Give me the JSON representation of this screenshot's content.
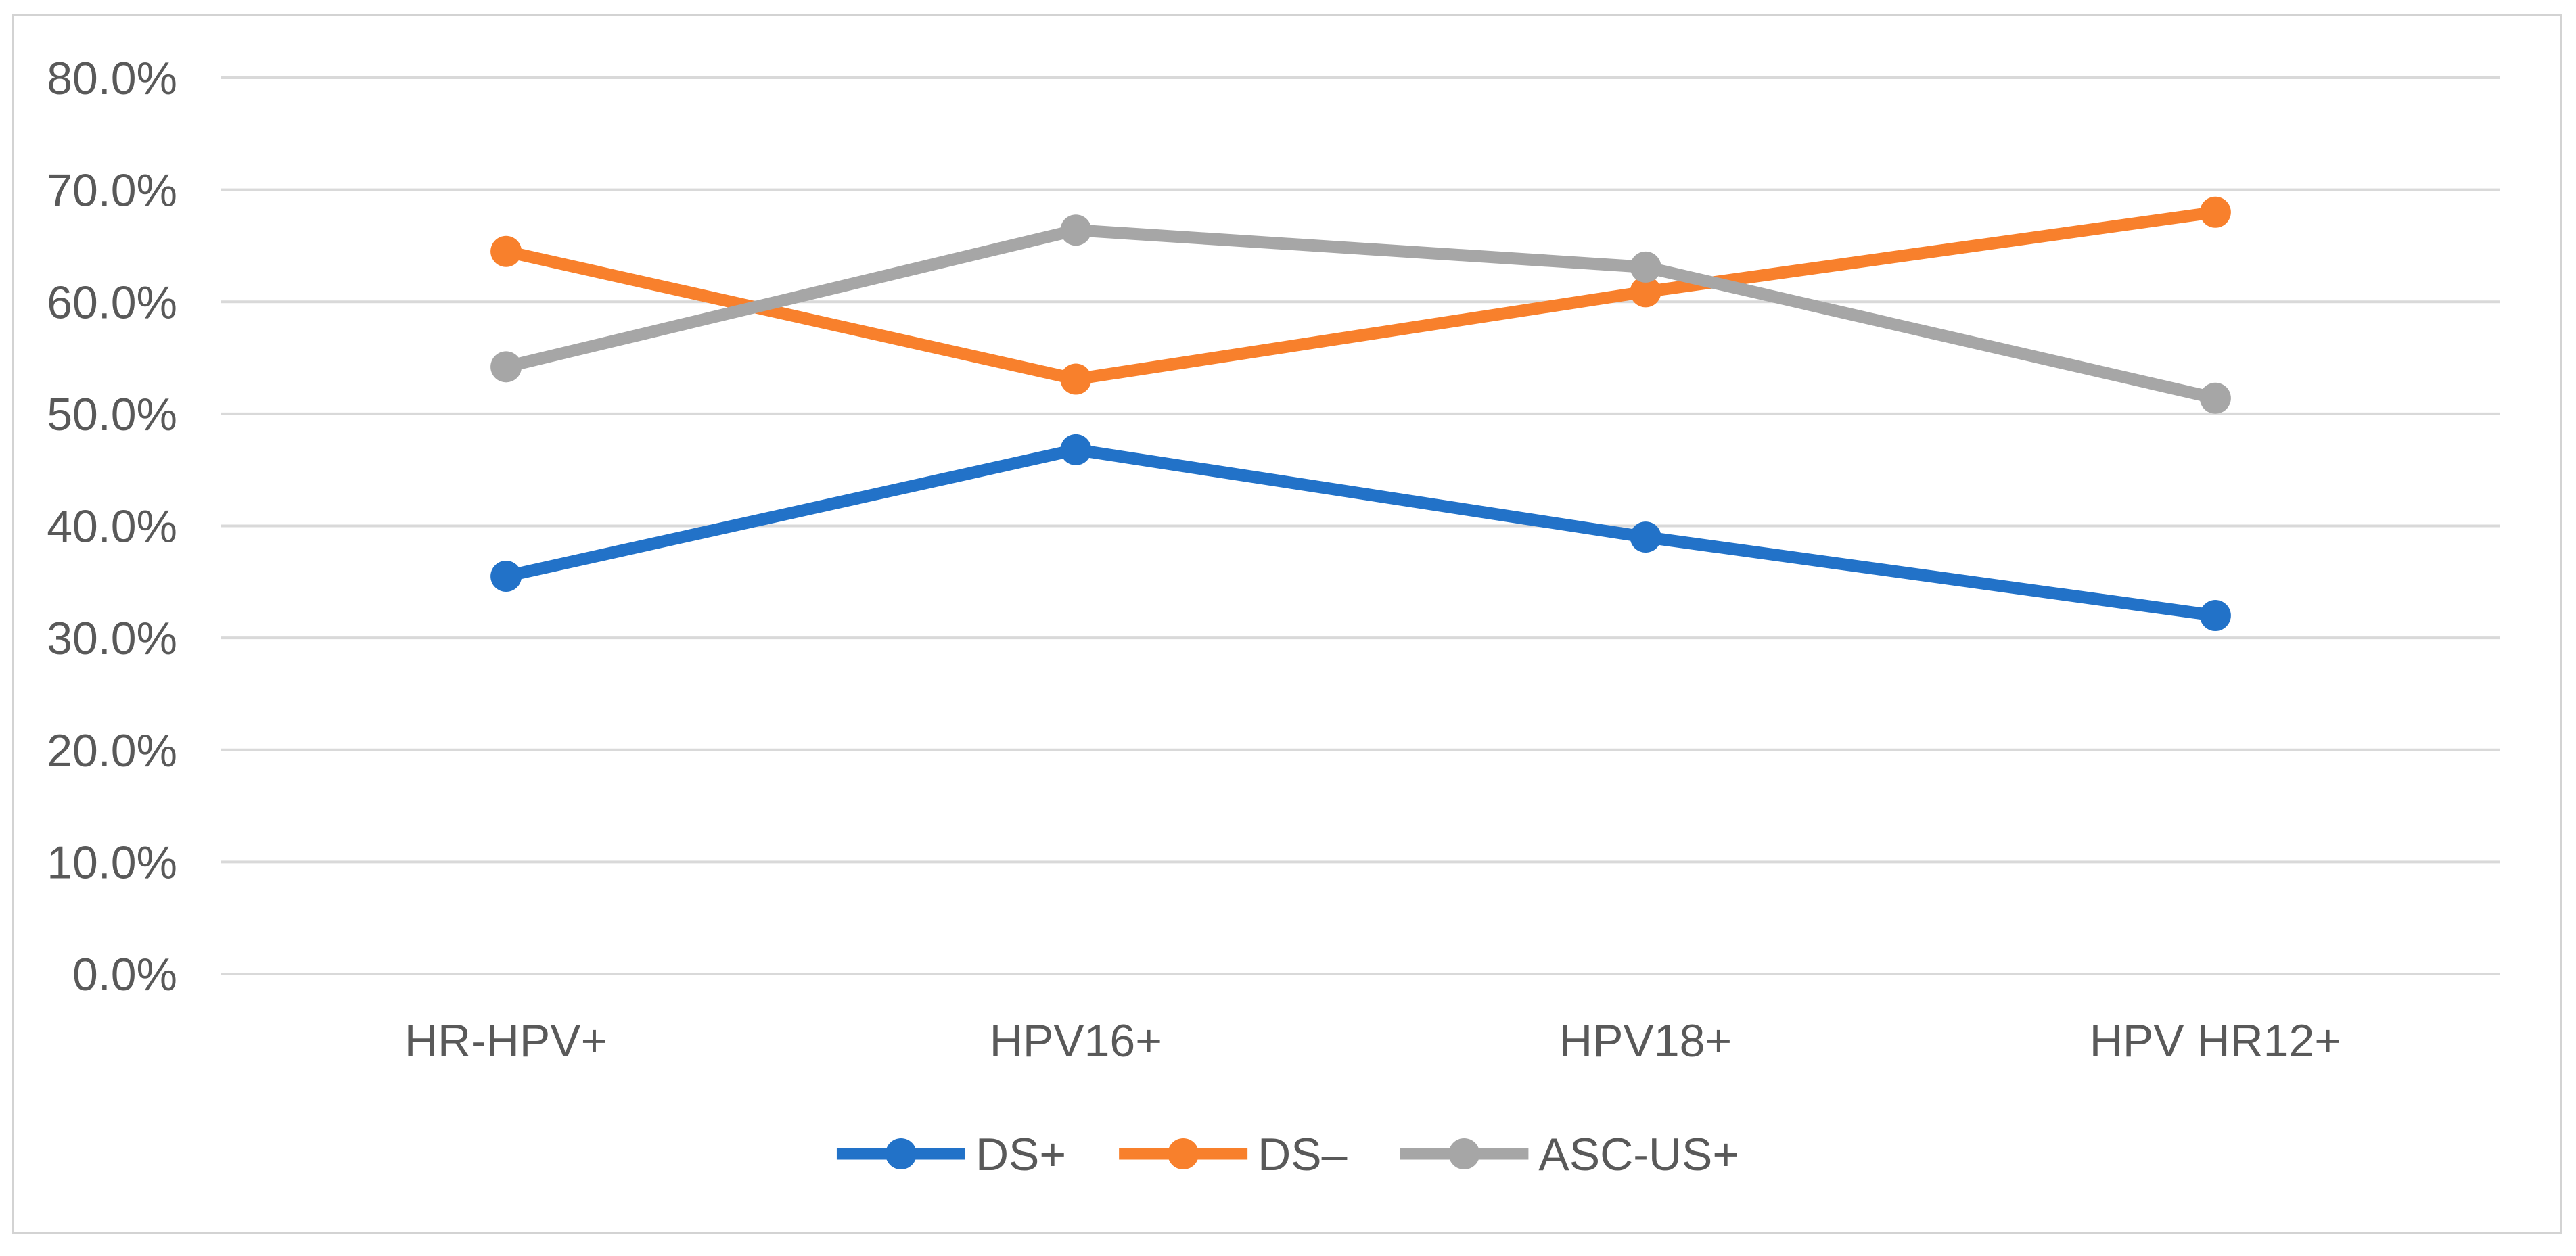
{
  "figure": {
    "background": "#ffffff",
    "border_color": "#d3d3d3"
  },
  "chart_data": {
    "type": "line",
    "title": "",
    "xlabel": "",
    "ylabel": "",
    "categories": [
      "HR-HPV+",
      "HPV16+",
      "HPV18+",
      "HPV HR12+"
    ],
    "series": [
      {
        "name": "DS+",
        "color": "#2272c8",
        "values": [
          35.5,
          46.8,
          39.0,
          32.0
        ]
      },
      {
        "name": "DS–",
        "color": "#f8802c",
        "values": [
          64.5,
          53.1,
          60.9,
          68.0
        ]
      },
      {
        "name": "ASC-US+",
        "color": "#a6a6a6",
        "values": [
          54.2,
          66.4,
          63.1,
          51.4
        ]
      }
    ],
    "ylim": [
      0,
      80
    ],
    "y_tick_step": 10,
    "y_tick_labels": [
      "0.0%",
      "10.0%",
      "20.0%",
      "30.0%",
      "40.0%",
      "50.0%",
      "60.0%",
      "70.0%",
      "80.0%"
    ],
    "grid": true,
    "gridline_color": "#d9d9d9",
    "tick_label_color": "#595959",
    "legend_position": "bottom-center",
    "marker": "circle"
  }
}
